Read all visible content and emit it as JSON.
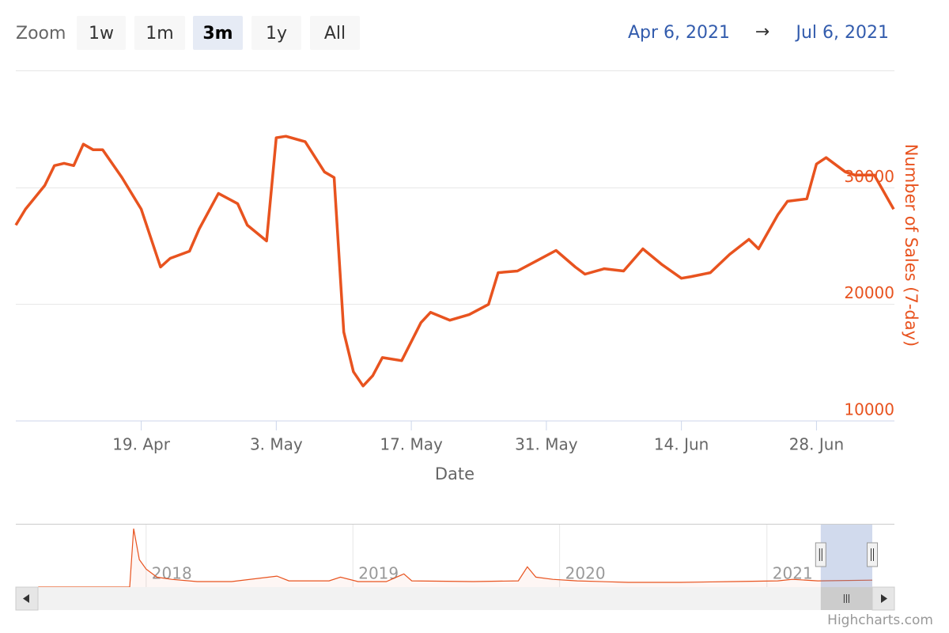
{
  "zoom": {
    "label": "Zoom",
    "buttons": [
      "1w",
      "1m",
      "3m",
      "1y",
      "All"
    ],
    "selected_index": 2
  },
  "range": {
    "from": "Apr 6, 2021",
    "arrow": "→",
    "to": "Jul 6, 2021"
  },
  "credits": "Highcharts.com",
  "chart_data": {
    "type": "line",
    "color": "#e8531f",
    "y_axis_title": "Number of Sales (7-day)",
    "x_axis_title": "Date",
    "x": [
      "2021-04-06",
      "2021-04-07",
      "2021-04-09",
      "2021-04-10",
      "2021-04-11",
      "2021-04-12",
      "2021-04-13",
      "2021-04-14",
      "2021-04-15",
      "2021-04-17",
      "2021-04-19",
      "2021-04-21",
      "2021-04-22",
      "2021-04-24",
      "2021-04-25",
      "2021-04-27",
      "2021-04-29",
      "2021-04-30",
      "2021-05-02",
      "2021-05-03",
      "2021-05-04",
      "2021-05-06",
      "2021-05-08",
      "2021-05-09",
      "2021-05-10",
      "2021-05-11",
      "2021-05-12",
      "2021-05-13",
      "2021-05-14",
      "2021-05-16",
      "2021-05-18",
      "2021-05-19",
      "2021-05-21",
      "2021-05-23",
      "2021-05-25",
      "2021-05-26",
      "2021-05-28",
      "2021-05-30",
      "2021-06-01",
      "2021-06-03",
      "2021-06-04",
      "2021-06-06",
      "2021-06-08",
      "2021-06-10",
      "2021-06-12",
      "2021-06-14",
      "2021-06-15",
      "2021-06-17",
      "2021-06-19",
      "2021-06-21",
      "2021-06-22",
      "2021-06-24",
      "2021-06-25",
      "2021-06-27",
      "2021-06-28",
      "2021-06-29",
      "2021-07-01",
      "2021-07-02",
      "2021-07-04",
      "2021-07-06"
    ],
    "values": [
      26800,
      28160,
      30200,
      31900,
      32100,
      31900,
      33740,
      33270,
      33270,
      30880,
      28160,
      23200,
      23950,
      24560,
      26460,
      29520,
      28640,
      26800,
      25440,
      34290,
      34420,
      33950,
      31360,
      30880,
      17620,
      14220,
      13000,
      13880,
      15440,
      15170,
      18440,
      19320,
      18640,
      19120,
      20000,
      22720,
      22860,
      23740,
      24630,
      23200,
      22590,
      23060,
      22860,
      24760,
      23400,
      22240,
      22380,
      22720,
      24290,
      25580,
      24760,
      27690,
      28840,
      29050,
      32040,
      32590,
      31360,
      31090,
      31090,
      28160
    ],
    "xlim": [
      "2021-04-06",
      "2021-07-06"
    ],
    "xticks": [
      {
        "value": "2021-04-19",
        "label": "19. Apr"
      },
      {
        "value": "2021-05-03",
        "label": "3. May"
      },
      {
        "value": "2021-05-17",
        "label": "17. May"
      },
      {
        "value": "2021-05-31",
        "label": "31. May"
      },
      {
        "value": "2021-06-14",
        "label": "14. Jun"
      },
      {
        "value": "2021-06-28",
        "label": "28. Jun"
      }
    ],
    "ylim": [
      10000,
      40000
    ],
    "yticks": [
      10000,
      20000,
      30000
    ],
    "grid": true,
    "navigator": {
      "type": "area",
      "x": [
        "2017-06-24",
        "2017-12-03",
        "2017-12-10",
        "2017-12-20",
        "2018-01-01",
        "2018-01-20",
        "2018-02-15",
        "2018-04-01",
        "2018-06-01",
        "2018-08-20",
        "2018-09-10",
        "2018-11-20",
        "2018-12-10",
        "2019-01-10",
        "2019-03-01",
        "2019-04-01",
        "2019-04-15",
        "2019-08-01",
        "2019-10-20",
        "2019-11-05",
        "2019-11-20",
        "2019-12-20",
        "2020-02-01",
        "2020-05-01",
        "2020-08-01",
        "2020-11-01",
        "2021-01-20",
        "2021-02-15",
        "2021-04-01",
        "2021-07-06"
      ],
      "values": [
        0,
        0,
        234000,
        110000,
        72000,
        40000,
        31000,
        22000,
        22000,
        44000,
        25000,
        25000,
        40000,
        22000,
        22000,
        53000,
        25000,
        22000,
        25000,
        81000,
        40000,
        31000,
        25000,
        19000,
        19000,
        22000,
        25000,
        31000,
        25000,
        28000
      ],
      "xlim": [
        "2017-06-24",
        "2021-07-06"
      ],
      "ylim": [
        0,
        250000
      ],
      "xticks": [
        {
          "value": "2018-01-01",
          "label": "2018"
        },
        {
          "value": "2019-01-01",
          "label": "2019"
        },
        {
          "value": "2020-01-01",
          "label": "2020"
        },
        {
          "value": "2021-01-01",
          "label": "2021"
        }
      ]
    }
  }
}
